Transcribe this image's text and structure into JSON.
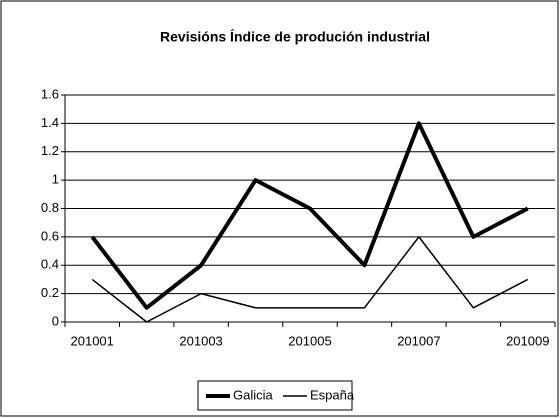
{
  "chart_data": {
    "type": "line",
    "title": "Revisións Índice de produción industrial",
    "categories": [
      "201001",
      null,
      "201003",
      null,
      "201005",
      null,
      "201007",
      null,
      "201009"
    ],
    "series": [
      {
        "name": "Galicia",
        "color": "#000000",
        "values": [
          0.6,
          0.1,
          0.4,
          1.0,
          0.8,
          0.4,
          1.4,
          0.6,
          0.8
        ]
      },
      {
        "name": "España",
        "color": "#000000",
        "values": [
          0.3,
          0.0,
          0.2,
          0.1,
          0.1,
          0.1,
          0.6,
          0.1,
          0.3
        ]
      }
    ],
    "ylim": [
      0,
      1.6
    ],
    "yticks": [
      0,
      0.2,
      0.4,
      0.6,
      0.8,
      1,
      1.2,
      1.4,
      1.6
    ],
    "grid": true,
    "legend": "bottom"
  }
}
